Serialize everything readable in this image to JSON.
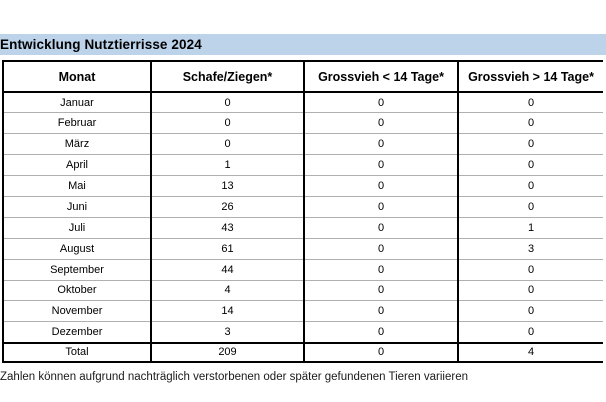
{
  "title": "Entwicklung Nutztierrisse 2024",
  "table": {
    "headers": [
      "Monat",
      "Schafe/Ziegen*",
      "Grossvieh < 14 Tage*",
      "Grossvieh > 14 Tage*"
    ],
    "rows": [
      [
        "Januar",
        "0",
        "0",
        "0"
      ],
      [
        "Februar",
        "0",
        "0",
        "0"
      ],
      [
        "März",
        "0",
        "0",
        "0"
      ],
      [
        "April",
        "1",
        "0",
        "0"
      ],
      [
        "Mai",
        "13",
        "0",
        "0"
      ],
      [
        "Juni",
        "26",
        "0",
        "0"
      ],
      [
        "Juli",
        "43",
        "0",
        "1"
      ],
      [
        "August",
        "61",
        "0",
        "3"
      ],
      [
        "September",
        "44",
        "0",
        "0"
      ],
      [
        "Oktober",
        "4",
        "0",
        "0"
      ],
      [
        "November",
        "14",
        "0",
        "0"
      ],
      [
        "Dezember",
        "3",
        "0",
        "0"
      ]
    ],
    "total_row": [
      "Total",
      "209",
      "0",
      "4"
    ]
  },
  "footnote": "Zahlen können aufgrund nachträglich verstorbenen oder später gefundenen Tieren variieren",
  "colors": {
    "title_bg": "#bdd3ea",
    "border": "#000000",
    "row_line": "#b0b0b0"
  }
}
